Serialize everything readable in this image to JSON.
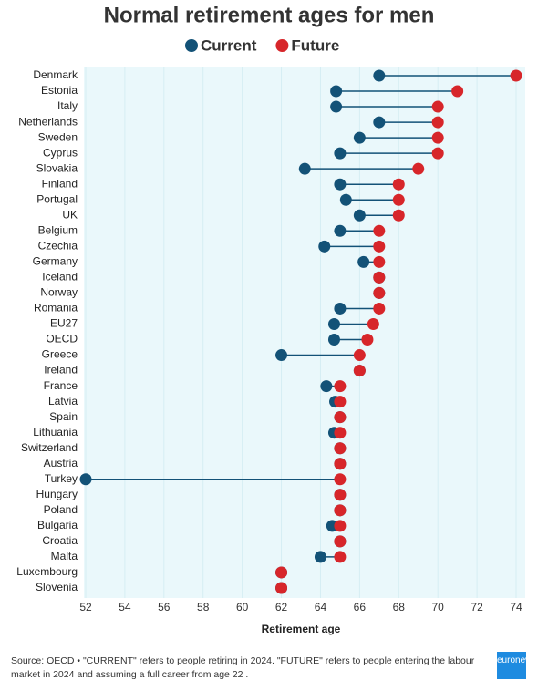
{
  "chart_data": {
    "type": "dumbbell",
    "title": "Normal retirement ages for men",
    "x_label": "Retirement age",
    "categories": [
      "Denmark",
      "Estonia",
      "Italy",
      "Netherlands",
      "Sweden",
      "Cyprus",
      "Slovakia",
      "Finland",
      "Portugal",
      "UK",
      "Belgium",
      "Czechia",
      "Germany",
      "Iceland",
      "Norway",
      "Romania",
      "EU27",
      "OECD",
      "Greece",
      "Ireland",
      "France",
      "Latvia",
      "Spain",
      "Lithuania",
      "Switzerland",
      "Austria",
      "Turkey",
      "Hungary",
      "Poland",
      "Bulgaria",
      "Croatia",
      "Malta",
      "Luxembourg",
      "Slovenia"
    ],
    "series": [
      {
        "name": "Current",
        "color": "#135277",
        "values": [
          67,
          64.8,
          64.8,
          67,
          66,
          65,
          63.2,
          65,
          65.3,
          66,
          65,
          64.2,
          66.2,
          67,
          67,
          65,
          64.7,
          64.7,
          62,
          66,
          64.3,
          64.75,
          65,
          64.7,
          65,
          65,
          52,
          65,
          65,
          64.6,
          65,
          64,
          62,
          62
        ]
      },
      {
        "name": "Future",
        "color": "#d7262a",
        "values": [
          74,
          71,
          70,
          70,
          70,
          70,
          69,
          68,
          68,
          68,
          67,
          67,
          67,
          67,
          67,
          67,
          66.7,
          66.4,
          66,
          66,
          65,
          65,
          65,
          65,
          65,
          65,
          65,
          65,
          65,
          65,
          65,
          65,
          62,
          62
        ]
      }
    ],
    "xlim": [
      52,
      74
    ],
    "xticks": [
      52,
      54,
      56,
      58,
      60,
      62,
      64,
      66,
      68,
      70,
      72,
      74
    ],
    "grid": true,
    "source": "Source: OECD • \"CURRENT\" refers to people retiring in 2024. \"FUTURE\" refers to people entering the labour market in 2024 and assuming a full career from age 22 .",
    "logo": "euronews."
  }
}
